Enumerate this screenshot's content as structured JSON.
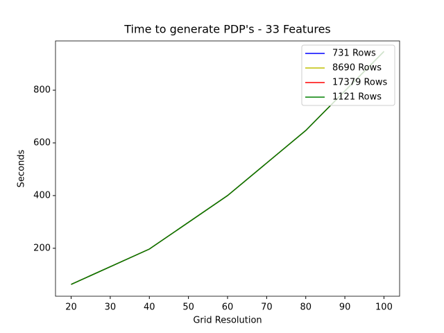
{
  "chart_data": {
    "type": "line",
    "title": "Time to generate PDP's - 33 Features",
    "xlabel": "Grid Resolution",
    "ylabel": "Seconds",
    "x": [
      20,
      40,
      60,
      80,
      100
    ],
    "series": [
      {
        "name": "731 Rows",
        "color": "#0000ff",
        "values": [
          63,
          197,
          400,
          647,
          947
        ]
      },
      {
        "name": "8690 Rows",
        "color": "#bfbf00",
        "values": [
          63,
          197,
          400,
          647,
          947
        ]
      },
      {
        "name": "17379 Rows",
        "color": "#ff0000",
        "values": [
          63,
          197,
          400,
          647,
          947
        ]
      },
      {
        "name": "1121 Rows",
        "color": "#008000",
        "values": [
          63,
          197,
          400,
          647,
          947
        ]
      }
    ],
    "xlim": [
      16,
      104
    ],
    "xticks": [
      20,
      30,
      40,
      50,
      60,
      70,
      80,
      90,
      100
    ],
    "ylim": [
      18,
      987
    ],
    "yticks": [
      200,
      400,
      600,
      800
    ],
    "grid": false,
    "legend": "upper right"
  }
}
